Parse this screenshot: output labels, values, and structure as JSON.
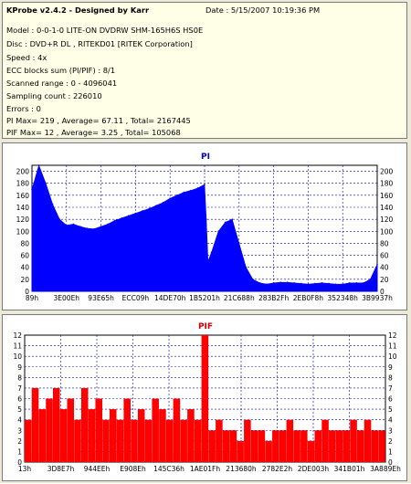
{
  "info": {
    "title": "KProbe v2.4.2 - Designed by Karr",
    "date": "Date : 5/15/2007 10:19:36 PM",
    "model": "Model : 0-0-1-0 LITE-ON DVDRW SHM-165H6S HS0E",
    "disc": "Disc : DVD+R DL , RITEKD01 [RITEK Corporation]",
    "speed": "Speed : 4x",
    "ecc": "ECC blocks sum (PI/PIF) : 8/1",
    "range": "Scanned range : 0 - 4096041",
    "sampling": "Sampling count : 226010",
    "errors": "Errors : 0",
    "pi_stats": "PI Max= 219 , Average= 67.11 , Total= 2167445",
    "pif_stats": "PIF Max= 12 , Average= 3.25 , Total= 105068"
  },
  "chart_data": [
    {
      "type": "area",
      "title": "PI",
      "color": "#0000ff",
      "ylim": [
        0,
        210
      ],
      "yticks": [
        0,
        20,
        40,
        60,
        80,
        100,
        120,
        140,
        160,
        180,
        200
      ],
      "xticks": [
        "89h",
        "3E00Eh",
        "93E65h",
        "ECC09h",
        "14DE70h",
        "1B5201h",
        "21C688h",
        "283B2Fh",
        "2EB0F8h",
        "352348h",
        "3B9937h"
      ],
      "series": [
        {
          "x": [
            0.0,
            0.02,
            0.04,
            0.06,
            0.08,
            0.1,
            0.12,
            0.14,
            0.16,
            0.18,
            0.2,
            0.22,
            0.24,
            0.26,
            0.28,
            0.3,
            0.32,
            0.34,
            0.36,
            0.38,
            0.4,
            0.42,
            0.44,
            0.46,
            0.48,
            0.5,
            0.505,
            0.51,
            0.52,
            0.54,
            0.56,
            0.58,
            0.6,
            0.62,
            0.64,
            0.66,
            0.68,
            0.7,
            0.72,
            0.74,
            0.76,
            0.78,
            0.8,
            0.82,
            0.84,
            0.86,
            0.88,
            0.9,
            0.92,
            0.94,
            0.96,
            0.98,
            1.0
          ],
          "values": [
            170,
            210,
            180,
            145,
            120,
            110,
            112,
            108,
            105,
            104,
            108,
            112,
            118,
            122,
            126,
            130,
            134,
            138,
            143,
            148,
            155,
            160,
            165,
            168,
            172,
            178,
            120,
            50,
            65,
            100,
            115,
            120,
            80,
            40,
            20,
            14,
            12,
            14,
            15,
            15,
            14,
            13,
            12,
            13,
            14,
            13,
            12,
            12,
            14,
            14,
            14,
            20,
            45
          ]
        }
      ]
    },
    {
      "type": "bar",
      "title": "PIF",
      "color": "#ff0000",
      "ylim": [
        0,
        12
      ],
      "yticks": [
        0,
        1,
        2,
        3,
        4,
        5,
        6,
        7,
        8,
        9,
        10,
        11,
        12
      ],
      "xticks": [
        "13h",
        "3D8E7h",
        "944EEh",
        "E908Eh",
        "145C36h",
        "1AE01Fh",
        "213680h",
        "2782E2h",
        "2DE003h",
        "341B01h",
        "3A889Eh"
      ],
      "series": [
        {
          "x": [
            0.0,
            0.02,
            0.04,
            0.06,
            0.08,
            0.1,
            0.12,
            0.14,
            0.16,
            0.18,
            0.2,
            0.22,
            0.24,
            0.26,
            0.28,
            0.3,
            0.32,
            0.34,
            0.36,
            0.38,
            0.4,
            0.42,
            0.44,
            0.46,
            0.48,
            0.5,
            0.52,
            0.54,
            0.56,
            0.58,
            0.6,
            0.62,
            0.64,
            0.66,
            0.68,
            0.7,
            0.72,
            0.74,
            0.76,
            0.78,
            0.8,
            0.82,
            0.84,
            0.86,
            0.88,
            0.9,
            0.92,
            0.94,
            0.96,
            0.98,
            1.0
          ],
          "values": [
            4,
            7,
            5,
            6,
            7,
            5,
            6,
            4,
            7,
            5,
            6,
            4,
            5,
            4,
            6,
            4,
            5,
            4,
            6,
            5,
            4,
            6,
            4,
            5,
            4,
            12,
            3,
            4,
            3,
            3,
            2,
            4,
            3,
            3,
            2,
            3,
            3,
            4,
            3,
            3,
            2,
            3,
            4,
            3,
            3,
            3,
            4,
            3,
            4,
            3,
            3
          ]
        }
      ]
    }
  ]
}
